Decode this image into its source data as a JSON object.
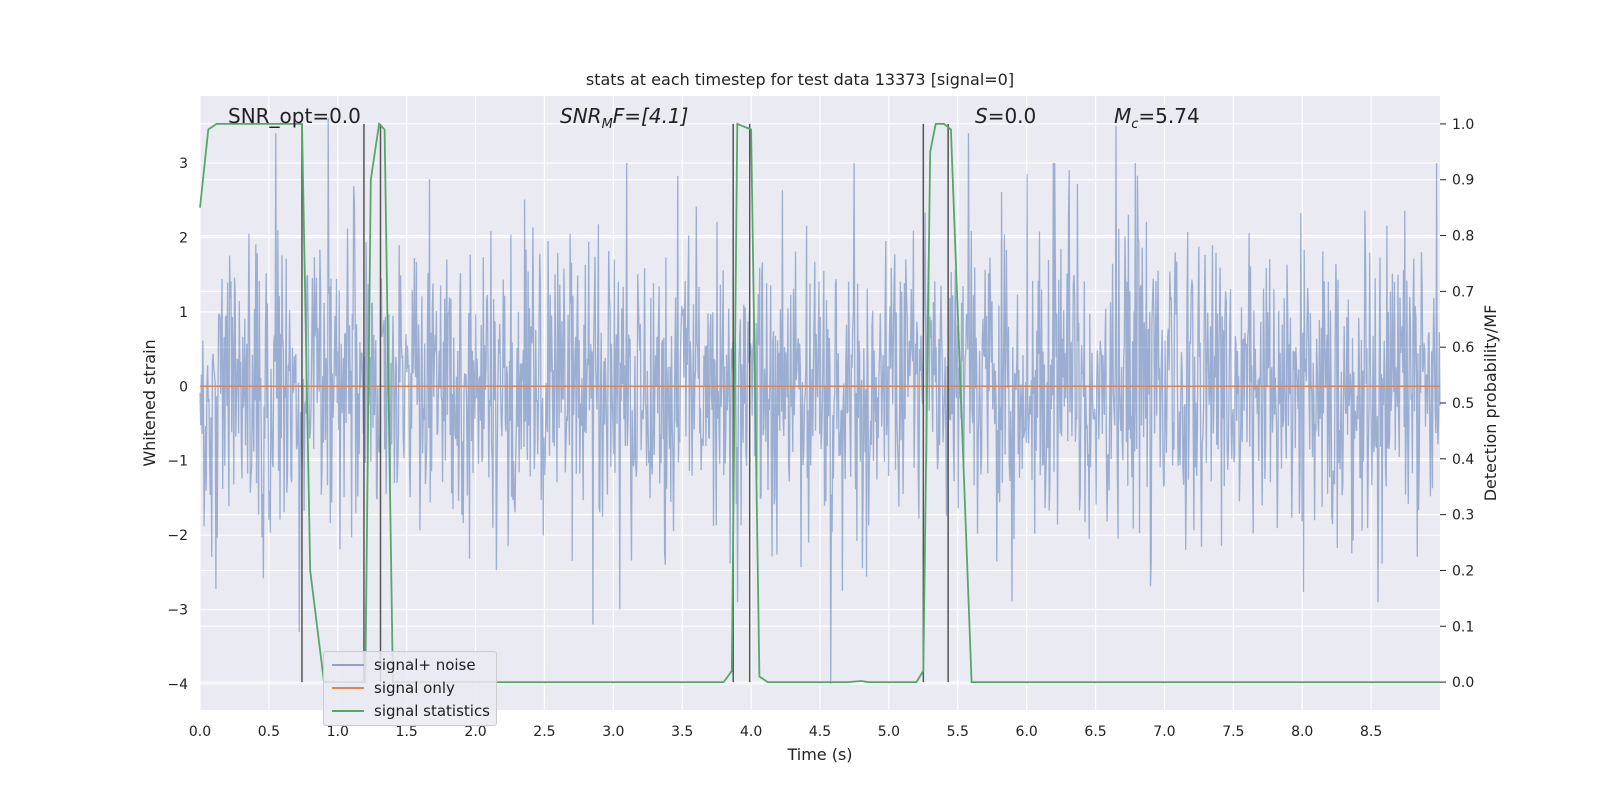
{
  "chart_data": {
    "type": "line",
    "title": "stats at each timestep for test data 13373 [signal=0]",
    "xlabel": "Time (s)",
    "ylabel": "Whitened strain",
    "y2label": "Detection probability/MF",
    "xlim": [
      0.0,
      9.0
    ],
    "ylim": [
      -4.35,
      3.9
    ],
    "y2lim": [
      -0.05,
      1.05
    ],
    "xticks": [
      "0.0",
      "0.5",
      "1.0",
      "1.5",
      "2.0",
      "2.5",
      "3.0",
      "3.5",
      "4.0",
      "4.5",
      "5.0",
      "5.5",
      "6.0",
      "6.5",
      "7.0",
      "7.5",
      "8.0",
      "8.5"
    ],
    "yticks": [
      "−4",
      "−3",
      "−2",
      "−1",
      "0",
      "1",
      "2",
      "3"
    ],
    "y2ticks": [
      "0.0",
      "0.1",
      "0.2",
      "0.3",
      "0.4",
      "0.5",
      "0.6",
      "0.7",
      "0.8",
      "0.9",
      "1.0"
    ],
    "grid": true,
    "legend_position": "lower-left",
    "colors": {
      "noise": "#4c72b0",
      "signal": "#dd8452",
      "stat": "#55a868",
      "vlines": "#555555",
      "background": "#eaeaf2",
      "grid": "#ffffff"
    },
    "series": [
      {
        "name": "signal+ noise",
        "axis": "left",
        "description_level": "whitened noise, amplitude ~ ±2, occasional spikes to ±3.5",
        "seed": 13373,
        "count": 1800,
        "x_range": [
          0.0,
          9.0
        ],
        "notable_spikes": [
          [
            0.55,
            3.4
          ],
          [
            0.72,
            -3.3
          ],
          [
            0.93,
            3.6
          ],
          [
            2.85,
            -3.2
          ],
          [
            3.9,
            -2.9
          ],
          [
            4.58,
            -4.0
          ],
          [
            5.58,
            3.4
          ],
          [
            6.65,
            3.5
          ],
          [
            8.55,
            -2.9
          ]
        ]
      },
      {
        "name": "signal only",
        "axis": "left",
        "x": [
          0.0,
          9.0
        ],
        "y": [
          0.0,
          0.0
        ]
      },
      {
        "name": "signal statistics",
        "axis": "right",
        "x": [
          0.0,
          0.06,
          0.12,
          0.3,
          0.5,
          0.7,
          0.74,
          0.8,
          0.9,
          1.0,
          1.1,
          1.2,
          1.24,
          1.3,
          1.34,
          1.4,
          1.5,
          2.0,
          3.0,
          3.8,
          3.86,
          3.9,
          4.0,
          4.06,
          4.12,
          4.3,
          4.7,
          4.8,
          4.85,
          4.9,
          5.0,
          5.2,
          5.25,
          5.3,
          5.34,
          5.4,
          5.45,
          5.6,
          5.65,
          6.0,
          7.0,
          8.0,
          9.0
        ],
        "y": [
          0.85,
          0.99,
          1.0,
          1.0,
          1.0,
          1.0,
          1.0,
          0.2,
          0.0,
          0.0,
          0.0,
          0.0,
          0.9,
          1.0,
          0.99,
          0.0,
          0.0,
          0.0,
          0.0,
          0.0,
          0.02,
          1.0,
          0.99,
          0.01,
          0.0,
          0.0,
          0.0,
          0.002,
          0.0,
          0.0,
          0.0,
          0.0,
          0.02,
          0.95,
          1.0,
          1.0,
          0.99,
          0.0,
          0.0,
          0.0,
          0.0,
          0.0,
          0.0
        ]
      }
    ],
    "vlines": [
      0.74,
      1.19,
      1.31,
      3.87,
      3.99,
      5.25,
      5.43
    ],
    "annotations": {
      "snr_opt": "SNR_opt=0.0",
      "snr_mf_label": "SNR",
      "snr_mf_sub": "M",
      "snr_mf_rest": "F=[4.1]",
      "s_label": "S",
      "s_value": "=0.0",
      "mc_label": "M",
      "mc_sub": "c",
      "mc_value": "=5.74"
    }
  }
}
